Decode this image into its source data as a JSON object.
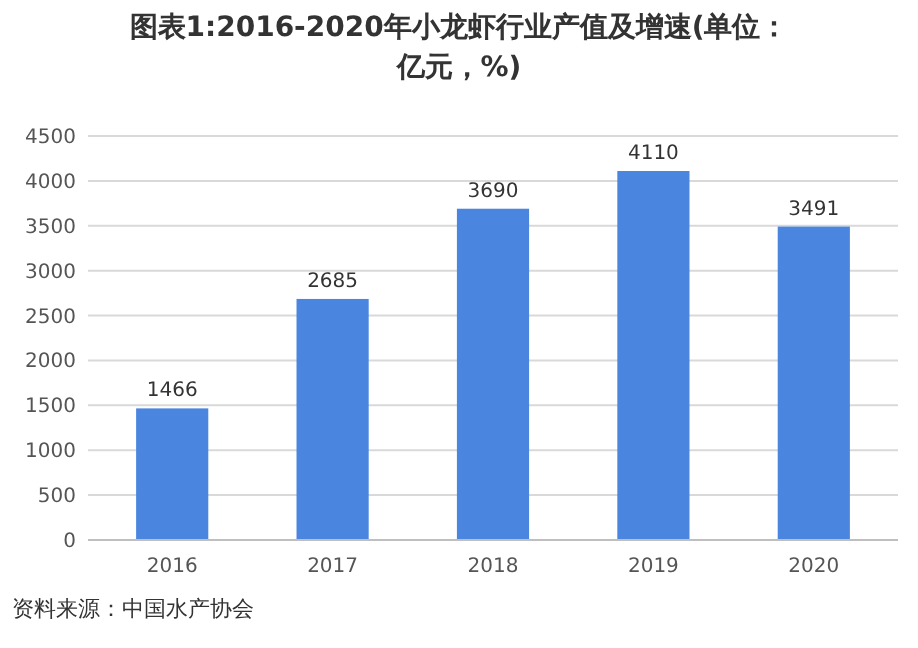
{
  "chart_data": {
    "type": "bar",
    "title": "图表1:2016-2020年小龙虾行业产值及增速(单位：亿元，%)",
    "categories": [
      "2016",
      "2017",
      "2018",
      "2019",
      "2020"
    ],
    "values": [
      1466,
      2685,
      3690,
      4110,
      3491
    ],
    "color": "#4a86e0",
    "ylim": [
      0,
      4500
    ],
    "yticks": [
      0,
      500,
      1000,
      1500,
      2000,
      2500,
      3000,
      3500,
      4000,
      4500
    ],
    "grid": "y",
    "data_labels": true,
    "annotations": [
      "资料来源：中国水产协会"
    ]
  }
}
